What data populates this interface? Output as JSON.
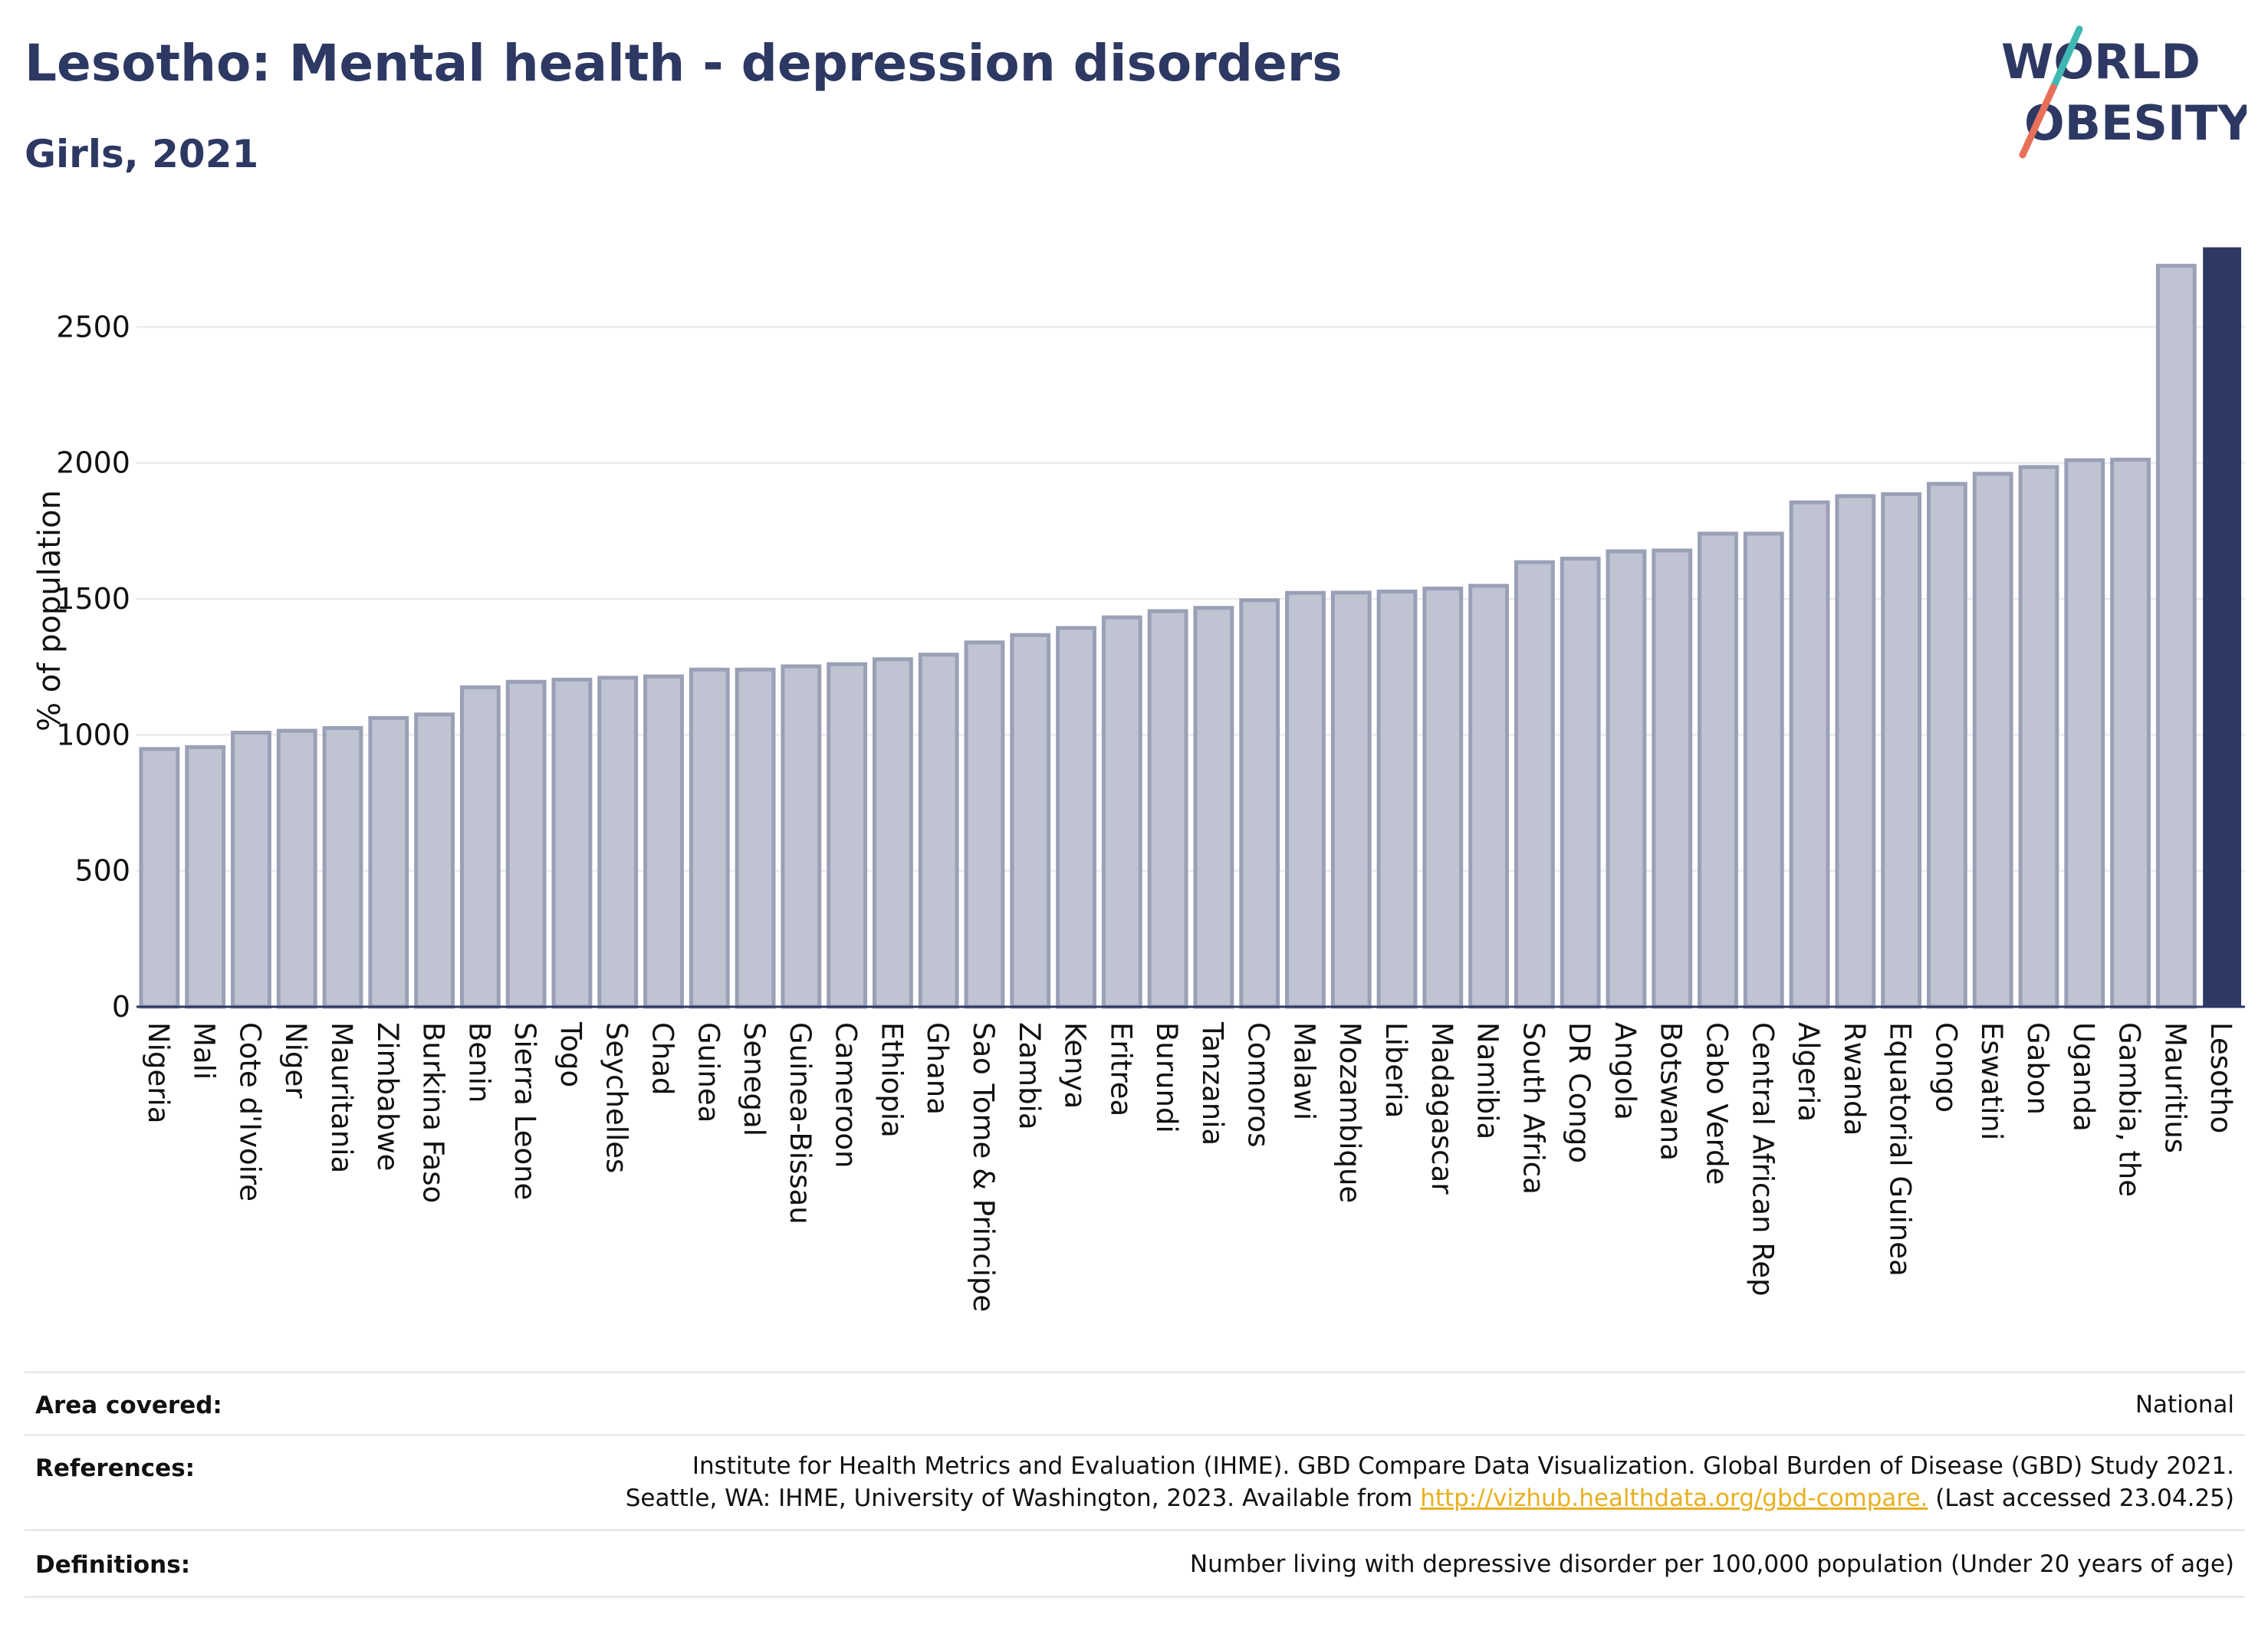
{
  "header": {
    "title": "Lesotho: Mental health - depression disorders",
    "subtitle": "Girls, 2021"
  },
  "logo": {
    "line1": "WORLD",
    "line2": "OBESITY",
    "text_color": "#2d3863",
    "slash_colors": [
      "#3fb8b3",
      "#e8705a"
    ]
  },
  "chart_data": {
    "type": "bar",
    "ylabel": "% of population",
    "ylim": [
      0,
      2800
    ],
    "yticks": [
      0,
      500,
      1000,
      1500,
      2000,
      2500
    ],
    "grid": true,
    "categories": [
      "Nigeria",
      "Mali",
      "Cote d'Ivoire",
      "Niger",
      "Mauritania",
      "Zimbabwe",
      "Burkina Faso",
      "Benin",
      "Sierra Leone",
      "Togo",
      "Seychelles",
      "Chad",
      "Guinea",
      "Senegal",
      "Guinea-Bissau",
      "Cameroon",
      "Ethiopia",
      "Ghana",
      "Sao Tome & Principe",
      "Zambia",
      "Kenya",
      "Eritrea",
      "Burundi",
      "Tanzania",
      "Comoros",
      "Malawi",
      "Mozambique",
      "Liberia",
      "Madagascar",
      "Namibia",
      "South Africa",
      "DR Congo",
      "Angola",
      "Botswana",
      "Cabo Verde",
      "Central African Rep",
      "Algeria",
      "Rwanda",
      "Equatorial Guinea",
      "Congo",
      "Eswatini",
      "Gabon",
      "Uganda",
      "Gambia, the",
      "Mauritius",
      "Lesotho"
    ],
    "values": [
      948,
      955,
      1008,
      1015,
      1025,
      1062,
      1075,
      1175,
      1195,
      1203,
      1210,
      1215,
      1240,
      1240,
      1252,
      1260,
      1278,
      1295,
      1340,
      1367,
      1393,
      1432,
      1455,
      1467,
      1495,
      1522,
      1523,
      1527,
      1538,
      1548,
      1635,
      1648,
      1675,
      1678,
      1740,
      1740,
      1855,
      1878,
      1885,
      1923,
      1960,
      1985,
      2010,
      2012,
      2725,
      2790
    ],
    "highlight": "Lesotho",
    "colors": {
      "bar": "#c0c3d1",
      "bar_edge": "#9aa0b6",
      "highlight": "#2d3863",
      "grid": "#e6e8ed",
      "axis": "#2d3863"
    }
  },
  "info": {
    "area_label": "Area covered:",
    "area_value": "National",
    "references_label": "References:",
    "references_line1": "Institute for Health Metrics and Evaluation (IHME). GBD Compare Data Visualization. Global Burden of Disease (GBD) Study 2021.",
    "references_line2_pre": "Seattle, WA: IHME, University of Washington, 2023. Available from ",
    "references_link": "http://vizhub.healthdata.org/gbd-compare.",
    "references_line2_post": " (Last accessed 23.04.25)",
    "definitions_label": "Definitions:",
    "definitions_value": "Number living with depressive disorder per 100,000 population (Under 20 years of age)"
  }
}
